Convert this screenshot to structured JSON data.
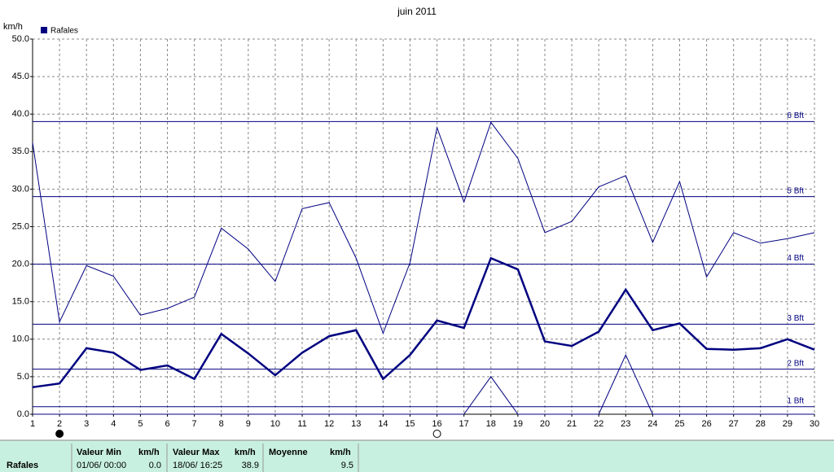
{
  "chart_data": {
    "type": "line",
    "title": "juin 2011",
    "y_label": "km/h",
    "legend": "Rafales",
    "x": [
      1,
      2,
      3,
      4,
      5,
      6,
      7,
      8,
      9,
      10,
      11,
      12,
      13,
      14,
      15,
      16,
      17,
      18,
      19,
      20,
      21,
      22,
      23,
      24,
      25,
      26,
      27,
      28,
      29,
      30
    ],
    "xlim": [
      1,
      30
    ],
    "xticks": [
      1,
      2,
      3,
      4,
      5,
      6,
      7,
      8,
      9,
      10,
      11,
      12,
      13,
      14,
      15,
      16,
      17,
      18,
      19,
      20,
      21,
      22,
      23,
      24,
      25,
      26,
      27,
      28,
      29,
      30
    ],
    "ylim": [
      0,
      50
    ],
    "yticks": [
      {
        "value": 0,
        "label": "0.0"
      },
      {
        "value": 5,
        "label": "5.0"
      },
      {
        "value": 10,
        "label": "10.0"
      },
      {
        "value": 15,
        "label": "15.0"
      },
      {
        "value": 20,
        "label": "20.0"
      },
      {
        "value": 25,
        "label": "25.0"
      },
      {
        "value": 30,
        "label": "30.0"
      },
      {
        "value": 35,
        "label": "35.0"
      },
      {
        "value": 40,
        "label": "40.0"
      },
      {
        "value": 45,
        "label": "45.0"
      },
      {
        "value": 50,
        "label": "50.0"
      }
    ],
    "grid": true,
    "series": [
      {
        "color": "#000080",
        "width": 1,
        "values": [
          36.2,
          12.3,
          19.8,
          18.4,
          13.2,
          14.1,
          15.6,
          24.8,
          22.0,
          17.7,
          27.4,
          28.2,
          20.8,
          10.8,
          20.2,
          38.2,
          28.3,
          38.9,
          34.1,
          24.2,
          25.7,
          30.3,
          31.8,
          22.9,
          31.0,
          18.3,
          24.2,
          22.8,
          23.4,
          24.2
        ]
      },
      {
        "color": "#000080",
        "width": 2.5,
        "values": [
          3.6,
          4.1,
          8.8,
          8.2,
          5.9,
          6.5,
          4.7,
          10.7,
          8.1,
          5.2,
          8.2,
          10.4,
          11.2,
          4.7,
          7.9,
          12.5,
          11.5,
          20.8,
          19.3,
          9.7,
          9.1,
          11.0,
          16.6,
          11.2,
          12.1,
          8.7,
          8.6,
          8.8,
          10.0,
          8.6
        ]
      },
      {
        "color": "#000080",
        "width": 1,
        "values": [
          0,
          0,
          0,
          0,
          0,
          0,
          0,
          0,
          0,
          0,
          0,
          0,
          0,
          0,
          0,
          0,
          0,
          5.0,
          0,
          0,
          0,
          0,
          7.9,
          0,
          0,
          0,
          0,
          0,
          0,
          0
        ]
      }
    ],
    "reference_lines": [
      {
        "value": 1,
        "label": "1 Bft"
      },
      {
        "value": 6,
        "label": "2 Bft"
      },
      {
        "value": 12,
        "label": "3 Bft"
      },
      {
        "value": 20,
        "label": "4 Bft"
      },
      {
        "value": 29,
        "label": "5 Bft"
      },
      {
        "value": 39,
        "label": "6 Bft"
      }
    ],
    "markers": [
      {
        "x": 2,
        "style": "filled"
      },
      {
        "x": 16,
        "style": "open"
      }
    ]
  },
  "table": {
    "row_label": "Rafales",
    "header": [
      "Valeur Min",
      "km/h",
      "Valeur Max",
      "km/h",
      "Moyenne",
      "km/h"
    ],
    "cells": [
      "01/06/ 00:00",
      "0.0",
      "18/06/ 16:25",
      "38.9",
      "9.5"
    ]
  }
}
